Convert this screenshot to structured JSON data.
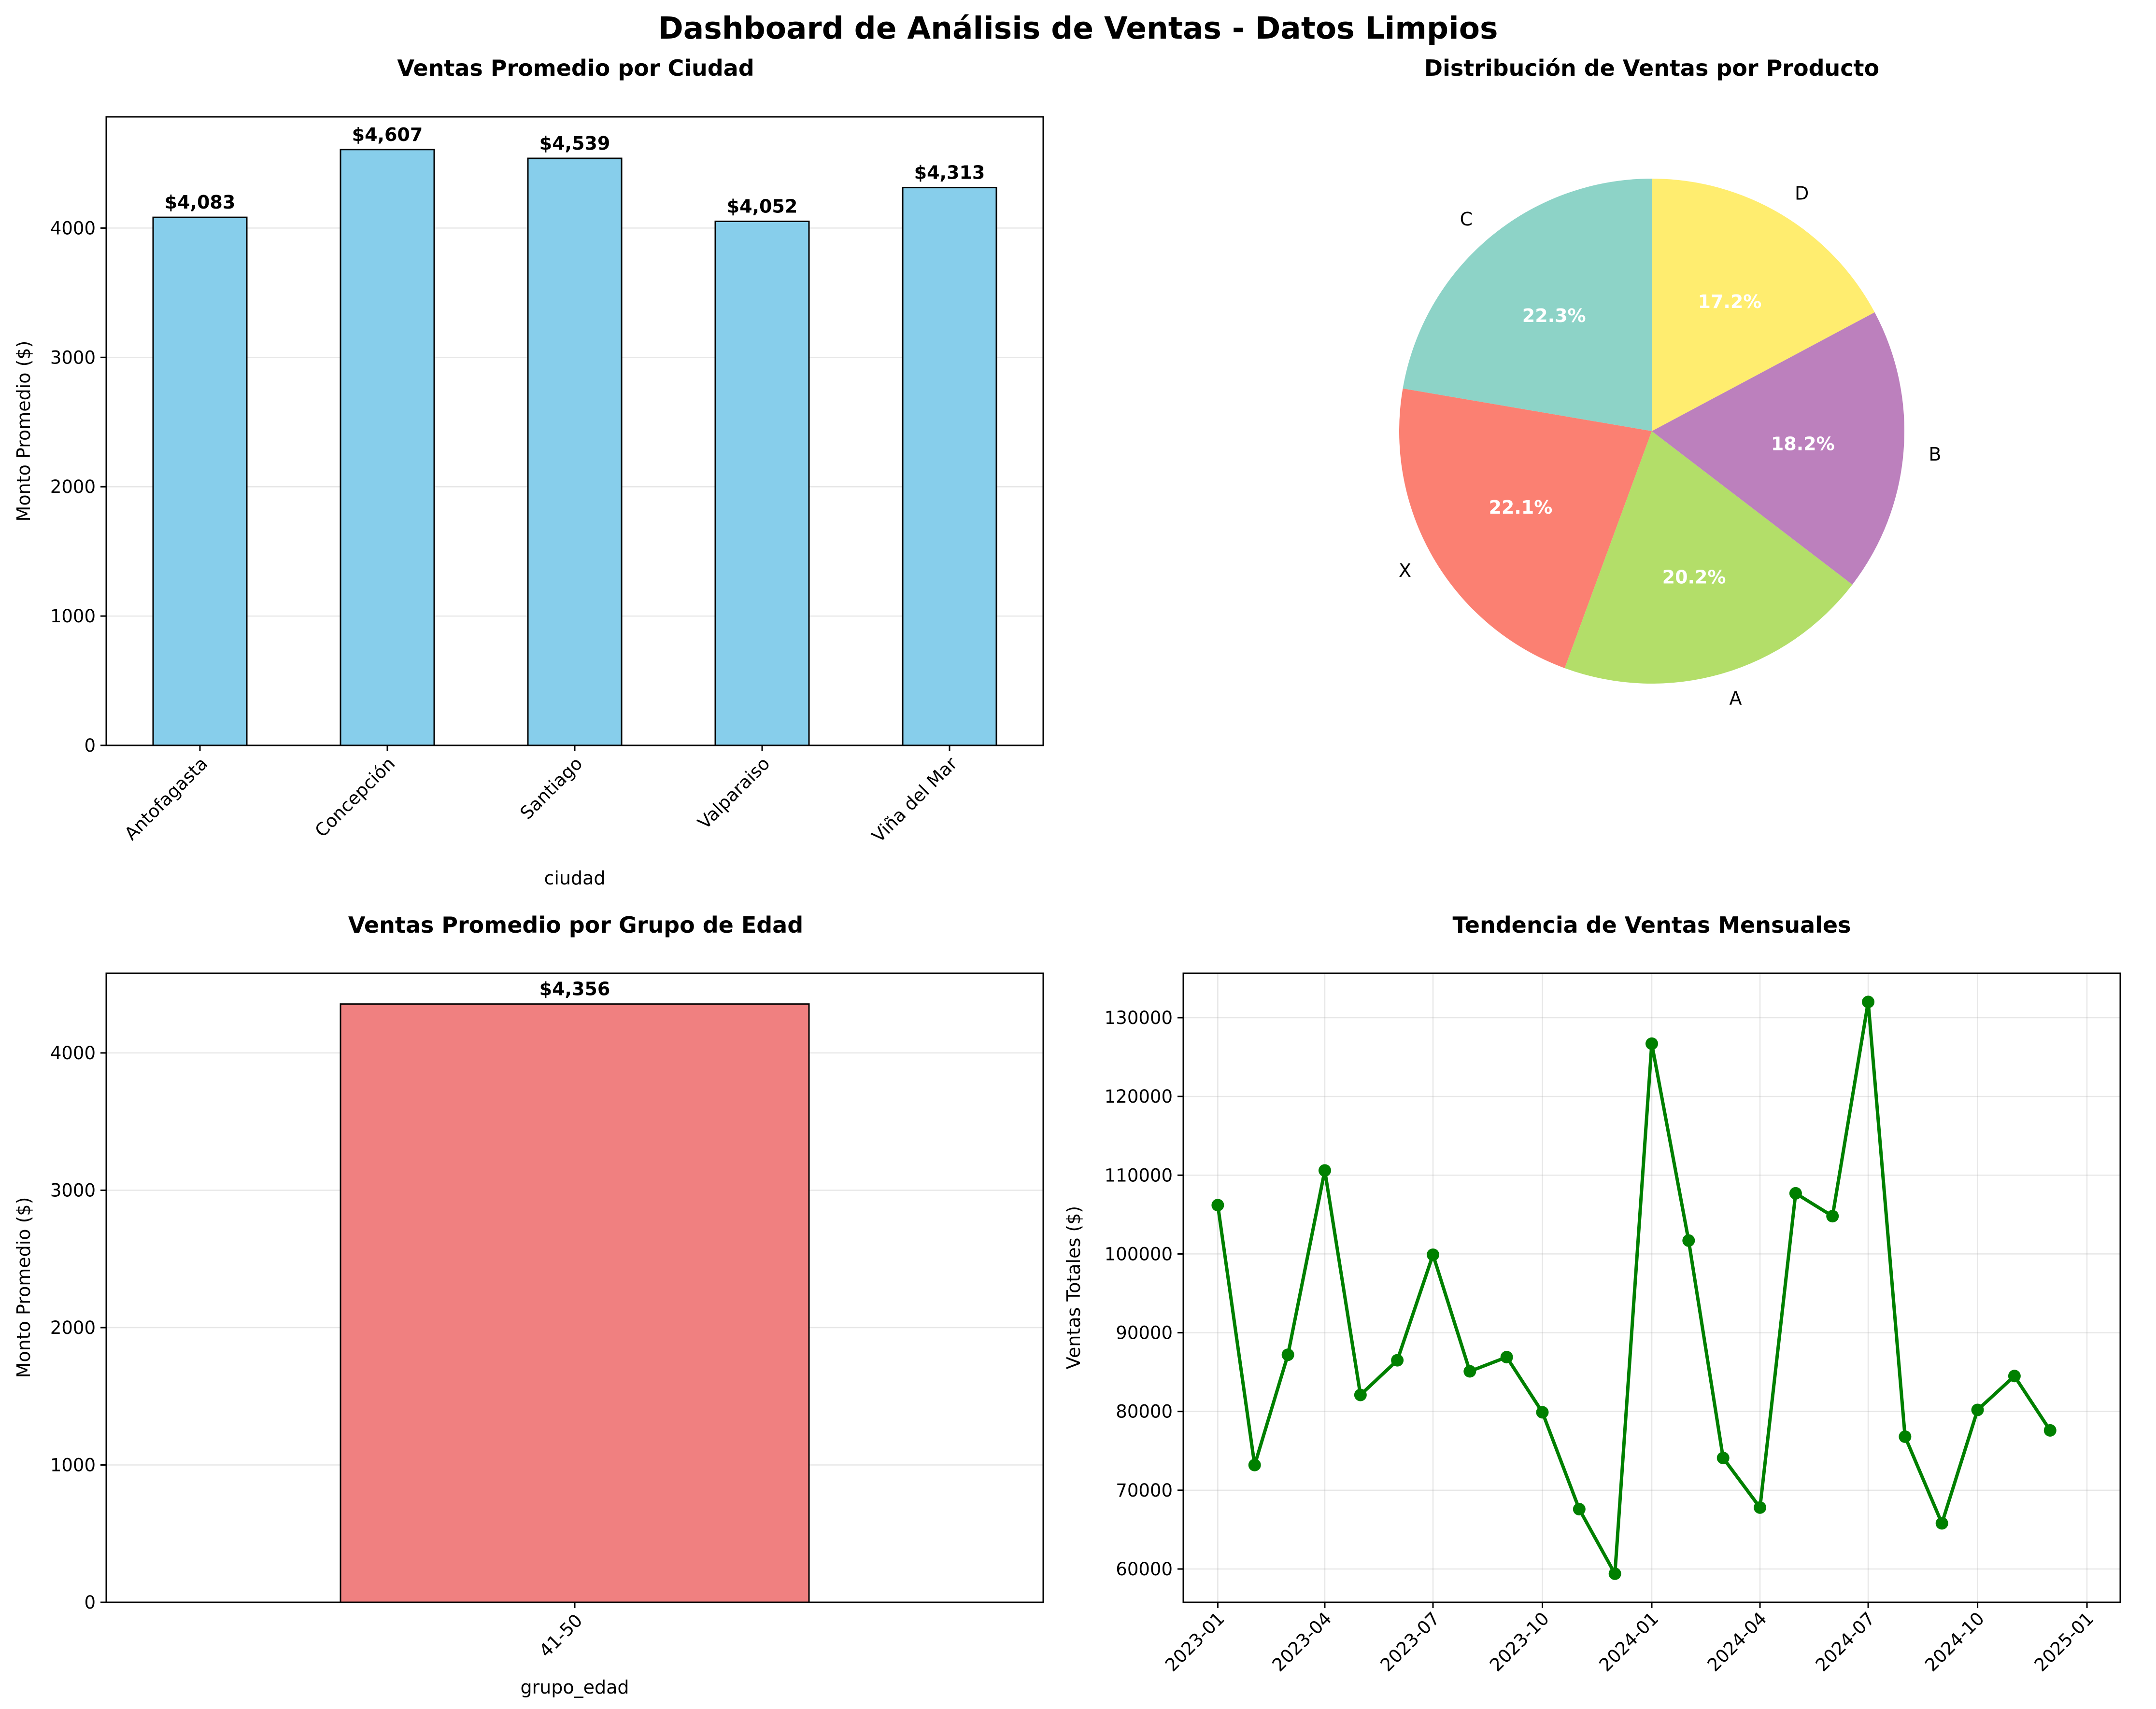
{
  "page_title": "Dashboard de Análisis de Ventas - Datos Limpios",
  "chart_data": [
    {
      "type": "bar",
      "title": "Ventas Promedio por Ciudad",
      "xlabel": "ciudad",
      "ylabel": "Monto Promedio ($)",
      "categories": [
        "Antofagasta",
        "Concepción",
        "Santiago",
        "Valparaiso",
        "Viña del Mar"
      ],
      "values": [
        4083,
        4607,
        4539,
        4052,
        4313
      ],
      "data_labels": [
        "$4,083",
        "$4,607",
        "$4,539",
        "$4,052",
        "$4,313"
      ],
      "ylim": [
        0,
        4860
      ],
      "yticks": [
        0,
        1000,
        2000,
        3000,
        4000
      ],
      "ytick_labels": [
        "0",
        "1000",
        "2000",
        "3000",
        "4000"
      ],
      "grid": "y",
      "color": "#87ceeb"
    },
    {
      "type": "pie",
      "title": "Distribución de Ventas por Producto",
      "labels": [
        "C",
        "X",
        "A",
        "B",
        "D"
      ],
      "values": [
        22.3,
        22.1,
        20.2,
        18.2,
        17.2
      ],
      "pct_labels": [
        "22.3%",
        "22.1%",
        "20.2%",
        "18.2%",
        "17.2%"
      ],
      "colors": [
        "#8dd3c7",
        "#fb8072",
        "#b3de69",
        "#bc80bd",
        "#ffed6f"
      ]
    },
    {
      "type": "bar",
      "title": "Ventas Promedio por Grupo de Edad",
      "xlabel": "grupo_edad",
      "ylabel": "Monto Promedio ($)",
      "categories": [
        "41-50"
      ],
      "values": [
        4356
      ],
      "data_labels": [
        "$4,356"
      ],
      "ylim": [
        0,
        4580
      ],
      "yticks": [
        0,
        1000,
        2000,
        3000,
        4000
      ],
      "ytick_labels": [
        "0",
        "1000",
        "2000",
        "3000",
        "4000"
      ],
      "grid": "y",
      "color": "#f08080"
    },
    {
      "type": "line",
      "title": "Tendencia de Ventas Mensuales",
      "ylabel": "Ventas Totales ($)",
      "x": [
        "2023-01",
        "2023-02",
        "2023-03",
        "2023-04",
        "2023-05",
        "2023-06",
        "2023-07",
        "2023-08",
        "2023-09",
        "2023-10",
        "2023-11",
        "2023-12",
        "2024-01",
        "2024-02",
        "2024-03",
        "2024-04",
        "2024-05",
        "2024-06",
        "2024-07",
        "2024-08",
        "2024-09",
        "2024-10",
        "2024-11",
        "2024-12"
      ],
      "values": [
        106200,
        73200,
        87200,
        110600,
        82100,
        86500,
        99900,
        85100,
        86900,
        79900,
        67600,
        59400,
        126700,
        101700,
        74100,
        67800,
        107700,
        104800,
        132000,
        76800,
        65800,
        80200,
        84500,
        77600
      ],
      "xticks": [
        "2023-01",
        "2023-04",
        "2023-07",
        "2023-10",
        "2024-01",
        "2024-04",
        "2024-07",
        "2024-10",
        "2025-01"
      ],
      "xlim": [
        "2022-12-03",
        "2025-01-29"
      ],
      "yticks": [
        60000,
        70000,
        80000,
        90000,
        100000,
        110000,
        120000,
        130000
      ],
      "ytick_labels": [
        "60000",
        "70000",
        "80000",
        "90000",
        "100000",
        "110000",
        "120000",
        "130000"
      ],
      "ylim": [
        55770,
        135640
      ],
      "grid": "both",
      "color": "#008000",
      "marker": "circle"
    }
  ]
}
